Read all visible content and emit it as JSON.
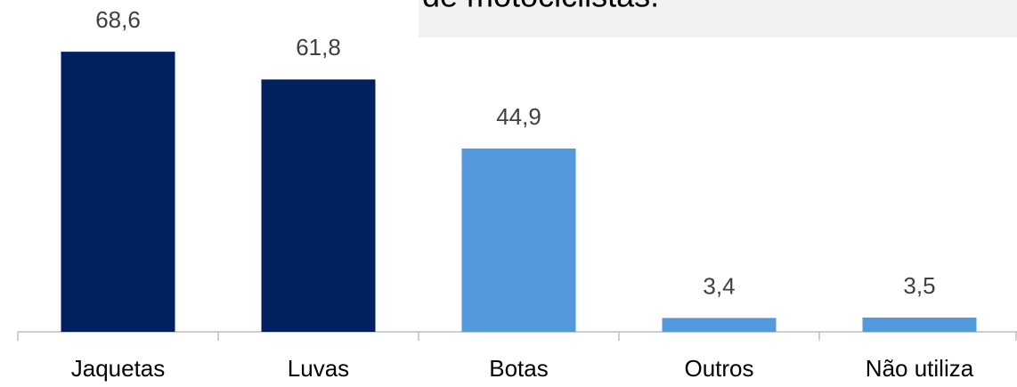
{
  "chart_data": {
    "type": "bar",
    "annotation": "de motociclistas.",
    "categories": [
      "Jaquetas",
      "Luvas",
      "Botas",
      "Outros",
      "Não utiliza"
    ],
    "values": [
      68.6,
      61.8,
      44.9,
      3.4,
      3.5
    ],
    "value_labels": [
      "68,6",
      "61,8",
      "44,9",
      "3,4",
      "3,5"
    ],
    "colors": [
      "#002060",
      "#002060",
      "#5499dc",
      "#5499dc",
      "#5499dc"
    ]
  }
}
